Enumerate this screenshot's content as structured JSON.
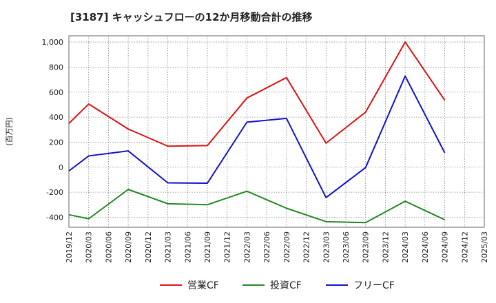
{
  "chart_data": {
    "type": "line",
    "title": "[3187]  キャッシュフローの12か月移動合計の推移",
    "ylabel": "(百万円)",
    "xlabel": "",
    "ylim": [
      -480,
      1050
    ],
    "yticks": [
      -400,
      -200,
      0,
      200,
      400,
      600,
      800,
      1000
    ],
    "ytick_labels": [
      "-400",
      "-200",
      "0",
      "200",
      "400",
      "600",
      "800",
      "1,000"
    ],
    "categories": [
      "2019/12",
      "2020/03",
      "2020/06",
      "2020/09",
      "2020/12",
      "2021/03",
      "2021/06",
      "2021/09",
      "2021/12",
      "2022/03",
      "2022/06",
      "2022/09",
      "2022/12",
      "2023/03",
      "2023/06",
      "2023/09",
      "2023/12",
      "2024/03",
      "2024/06",
      "2024/09",
      "2024/12",
      "2025/03"
    ],
    "grid": true,
    "legend_position": "bottom",
    "series": [
      {
        "name": "営業CF",
        "color": "#dd1111",
        "values": [
          350,
          505,
          null,
          305,
          null,
          168,
          null,
          173,
          null,
          553,
          null,
          716,
          null,
          192,
          null,
          440,
          null,
          1000,
          null,
          535,
          null,
          null
        ]
      },
      {
        "name": "投資CF",
        "color": "#228822",
        "values": [
          -380,
          -412,
          null,
          -178,
          null,
          -292,
          null,
          -300,
          null,
          -192,
          null,
          -328,
          null,
          -435,
          null,
          -443,
          null,
          -272,
          null,
          -420,
          null,
          null
        ]
      },
      {
        "name": "フリーCF",
        "color": "#1111cc",
        "values": [
          -30,
          90,
          null,
          130,
          null,
          -125,
          null,
          -128,
          null,
          360,
          null,
          390,
          null,
          -243,
          null,
          -3,
          null,
          728,
          null,
          115,
          null,
          null
        ]
      }
    ]
  }
}
